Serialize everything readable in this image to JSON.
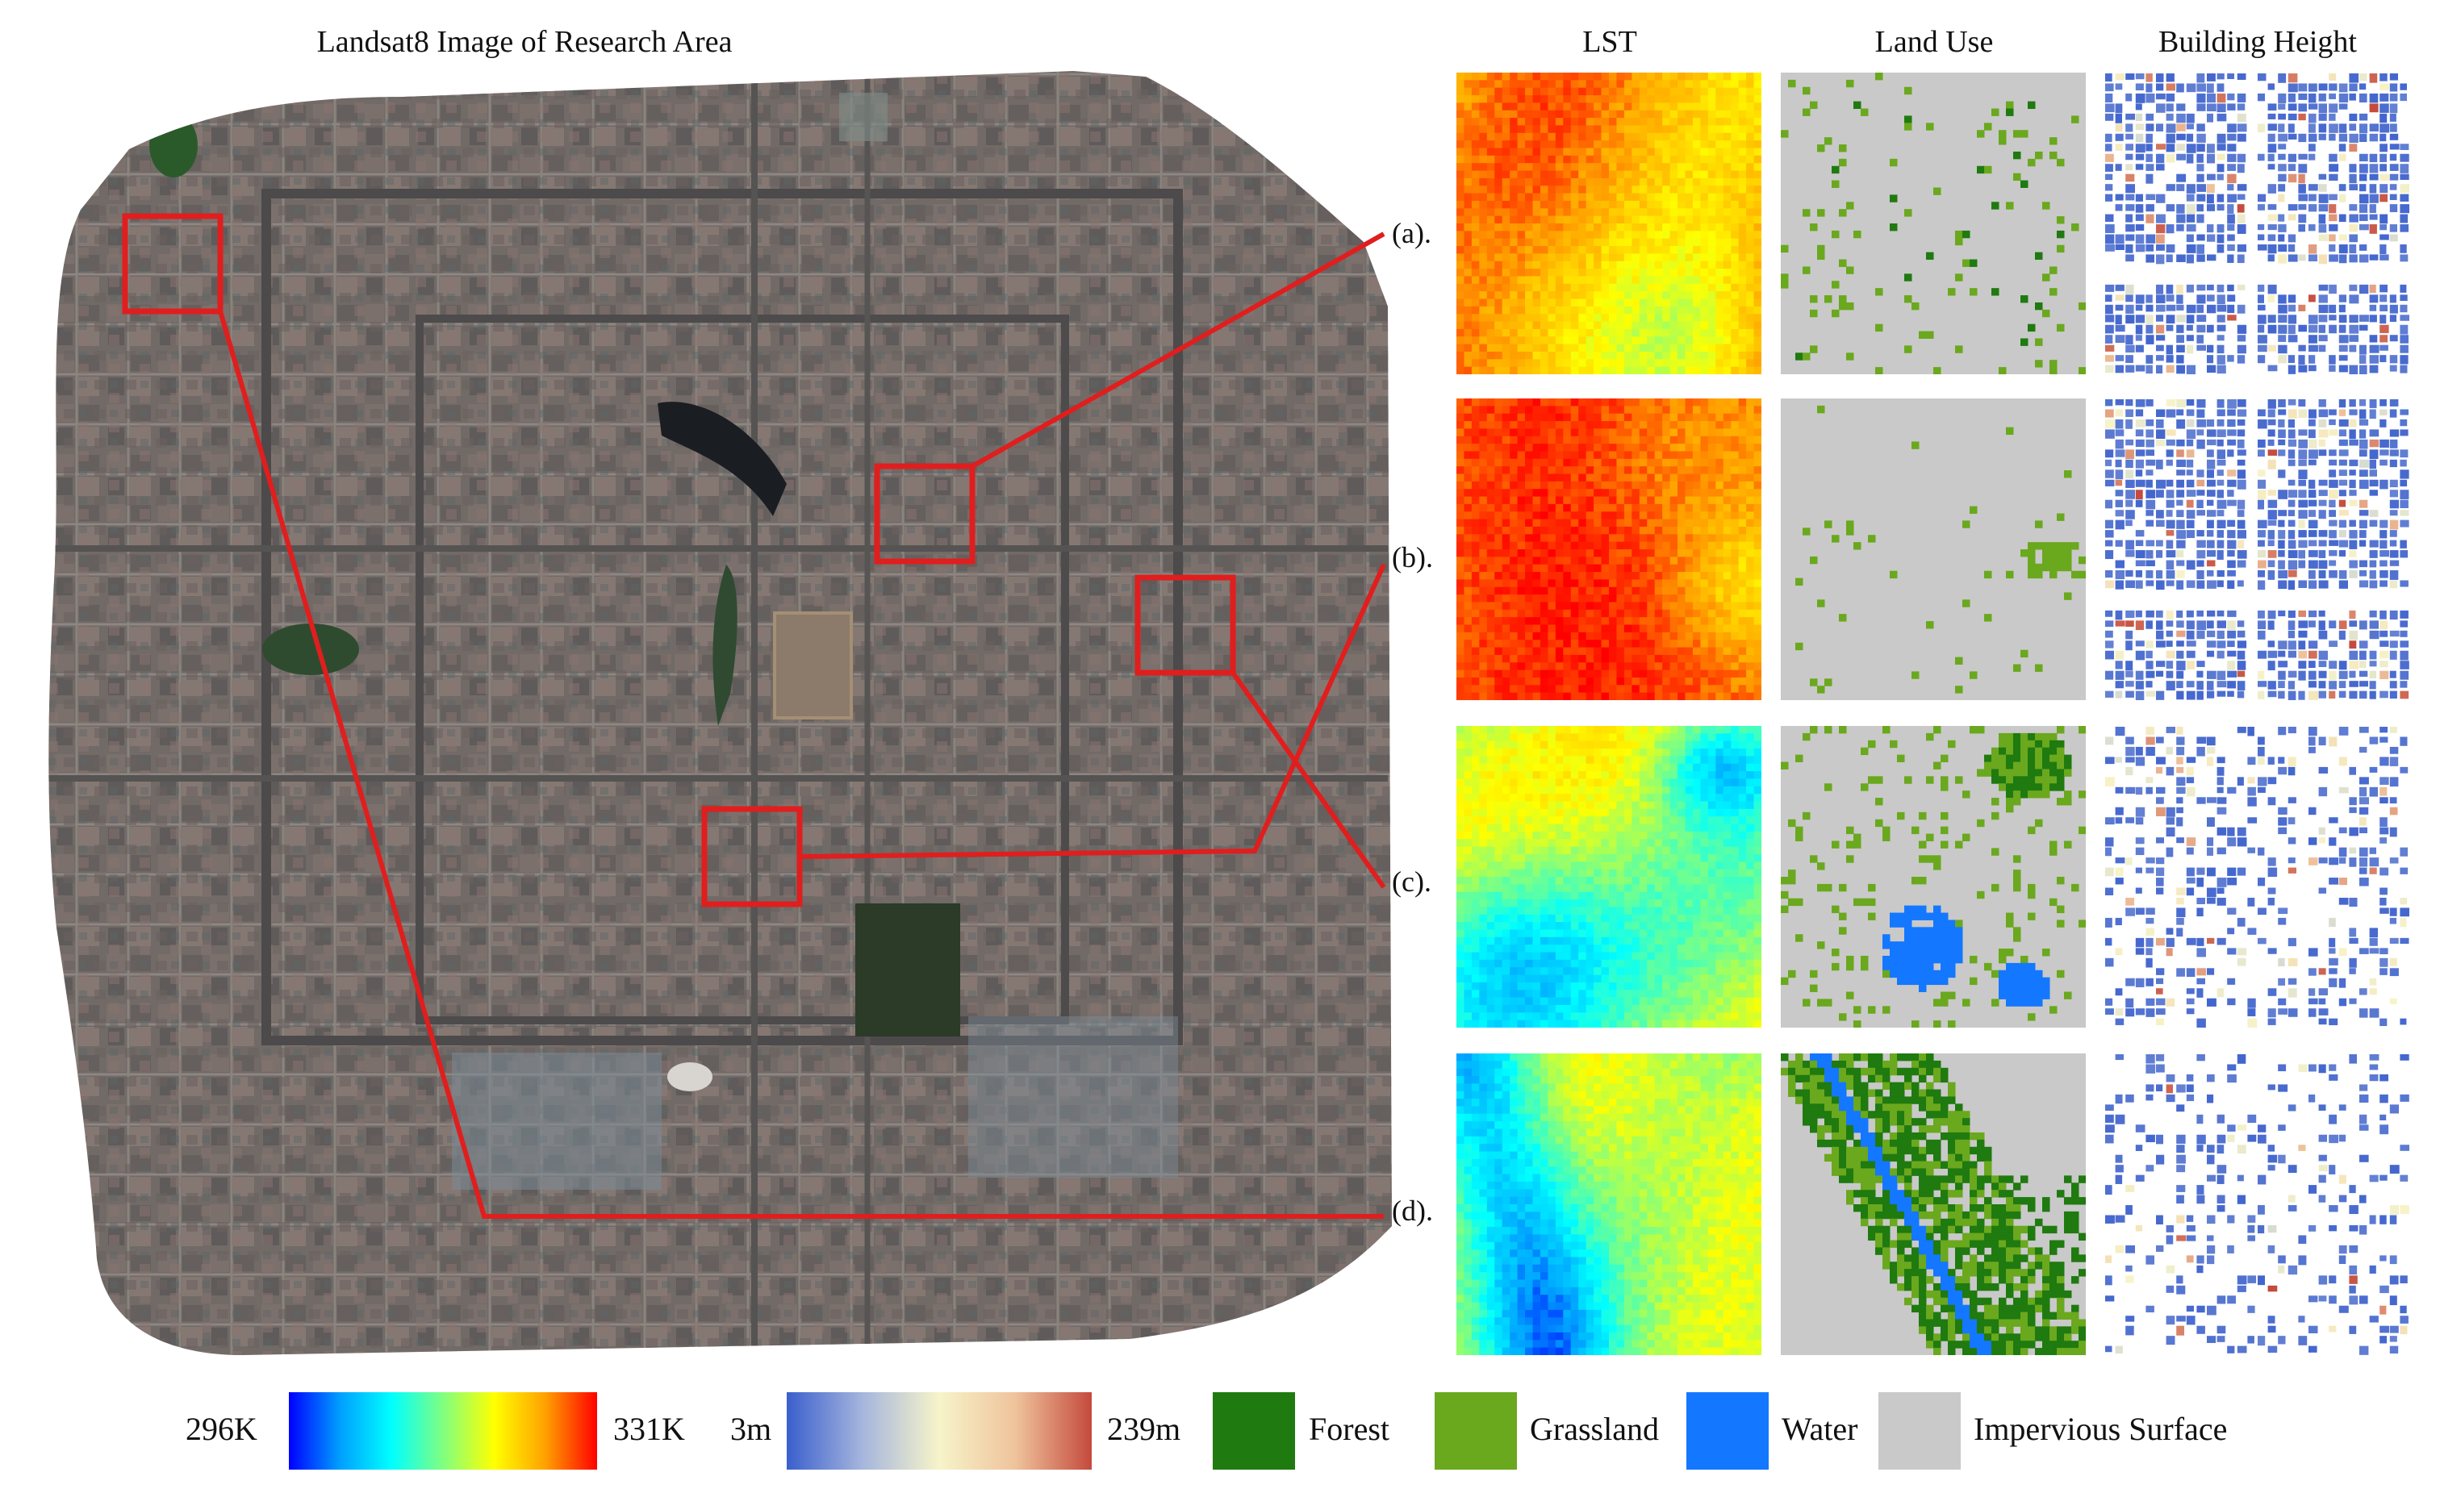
{
  "figure": {
    "main_title": "Landsat8 Image of Research Area",
    "column_titles": {
      "lst": "LST",
      "land_use": "Land Use",
      "building_height": "Building Height"
    },
    "row_labels": [
      "(a).",
      "(b).",
      "(c).",
      "(d)."
    ]
  },
  "legend": {
    "lst": {
      "min_label": "296K",
      "max_label": "331K",
      "colors": [
        "#0000ff",
        "#00a0ff",
        "#00ffff",
        "#80ff80",
        "#ffff00",
        "#ffa000",
        "#ff0000"
      ]
    },
    "height": {
      "min_label": "3m",
      "max_label": "239m",
      "colors": [
        "#3a5fcd",
        "#a6b6dd",
        "#f7f4c9",
        "#efc39c",
        "#c44a3c"
      ]
    },
    "classes": [
      {
        "label": "Forest",
        "color": "#1f7a0f"
      },
      {
        "label": "Grassland",
        "color": "#6aa81e"
      },
      {
        "label": "Water",
        "color": "#1477ff"
      },
      {
        "label": "Impervious Surface",
        "color": "#c9c9c9"
      }
    ]
  },
  "colors": {
    "highlight": "#e01e1e",
    "satellite_base": "#6e6864"
  }
}
